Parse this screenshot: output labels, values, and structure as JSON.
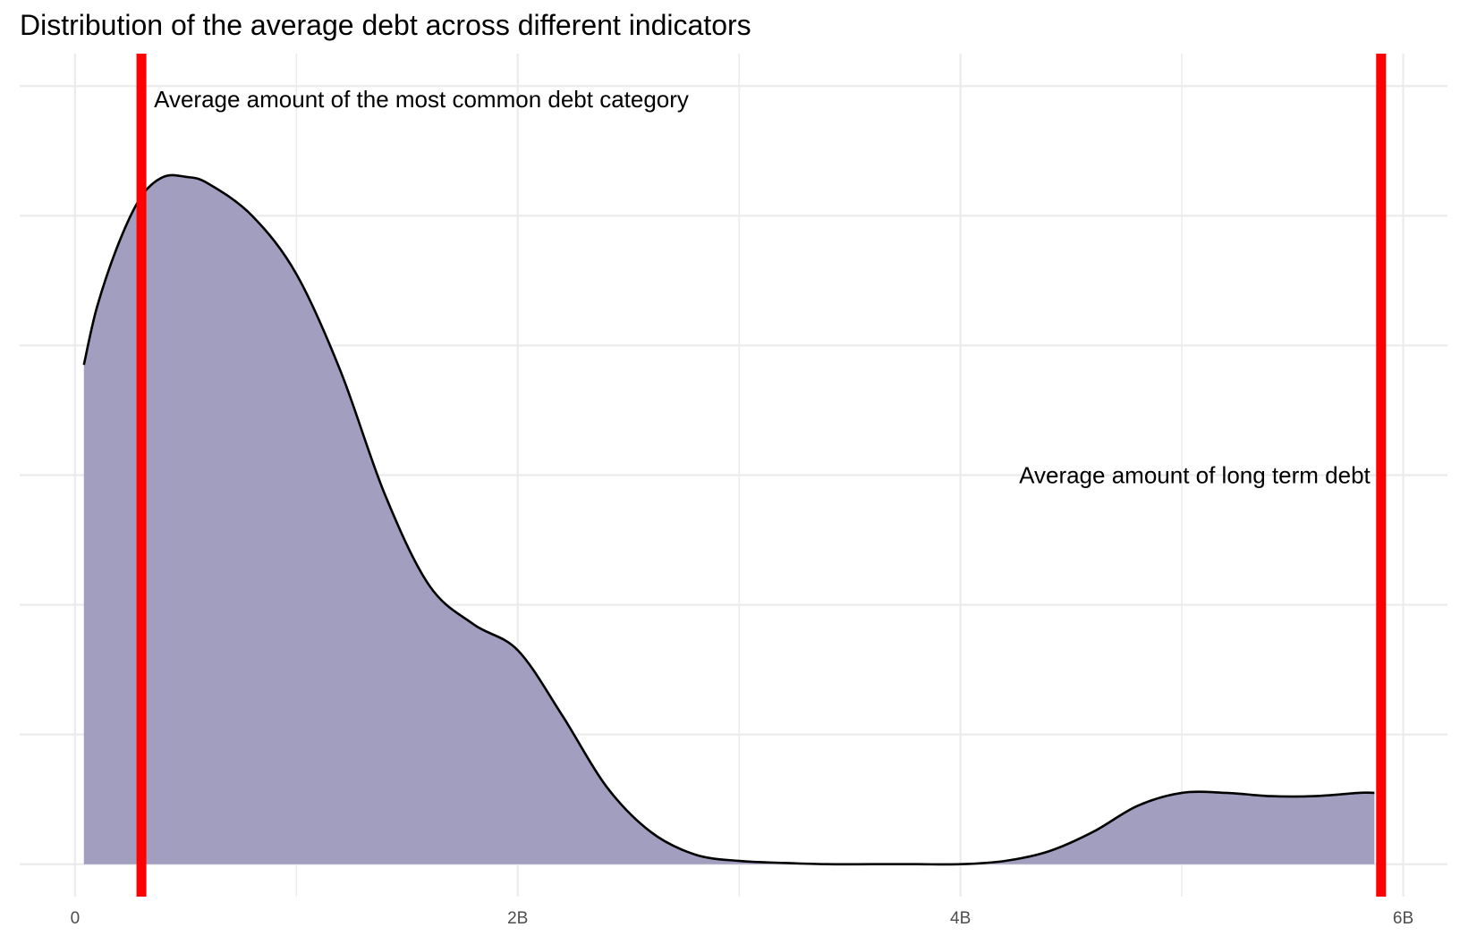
{
  "chart_data": {
    "type": "area",
    "title": "Distribution of the average debt across different indicators",
    "xlabel": "",
    "ylabel": "",
    "xlim": [
      -0.25,
      6.2
    ],
    "ylim": [
      -0.05,
      1.25
    ],
    "x_ticks": [
      {
        "value": 0,
        "label": "0"
      },
      {
        "value": 2,
        "label": "2B"
      },
      {
        "value": 4,
        "label": "4B"
      },
      {
        "value": 6,
        "label": "6B"
      }
    ],
    "x_minor_grid": [
      1,
      3,
      5
    ],
    "y_grid": [
      0,
      0.2,
      0.4,
      0.6,
      0.8,
      1.0,
      1.2
    ],
    "y_tick_labels_shown": false,
    "x_units": "billions",
    "grid": true,
    "fill_color": "#a19ebf",
    "line_color": "#000000",
    "density": {
      "x": [
        0.04,
        0.1,
        0.2,
        0.3,
        0.4,
        0.5,
        0.6,
        0.8,
        1.0,
        1.2,
        1.4,
        1.6,
        1.8,
        2.0,
        2.2,
        2.4,
        2.6,
        2.8,
        3.0,
        3.2,
        3.4,
        3.6,
        3.8,
        4.0,
        4.2,
        4.4,
        4.6,
        4.8,
        5.0,
        5.2,
        5.4,
        5.6,
        5.8,
        5.87
      ],
      "y": [
        0.77,
        0.86,
        0.96,
        1.03,
        1.06,
        1.06,
        1.05,
        1.0,
        0.91,
        0.76,
        0.57,
        0.43,
        0.37,
        0.33,
        0.23,
        0.12,
        0.05,
        0.015,
        0.005,
        0.002,
        0.0,
        0.0,
        0.0,
        0.0,
        0.005,
        0.02,
        0.05,
        0.09,
        0.11,
        0.11,
        0.105,
        0.105,
        0.11,
        0.11
      ]
    },
    "reference_lines": [
      {
        "x": 0.3,
        "color": "#ff0000",
        "label": "Average amount of the most common debt category",
        "label_y": 1.18,
        "label_anchor": "start"
      },
      {
        "x": 5.9,
        "color": "#ff0000",
        "label": "Average amount of long term debt",
        "label_y": 0.6,
        "label_anchor": "end"
      }
    ]
  }
}
